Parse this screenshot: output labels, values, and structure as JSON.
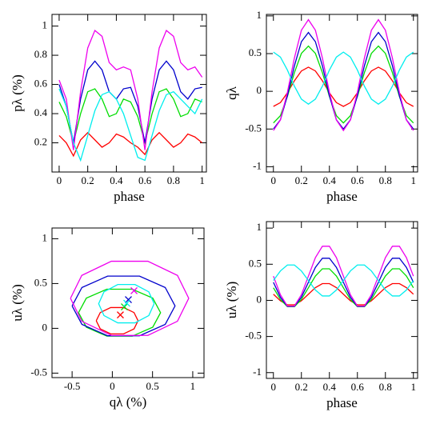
{
  "chart_data": [
    {
      "type": "line",
      "xlabel": "phase",
      "ylabel": "pλ (%)",
      "xlim": [
        -0.05,
        1.03
      ],
      "ylim": [
        0,
        1.08
      ],
      "xticks": [
        0,
        0.2,
        0.4,
        0.6,
        0.8,
        1
      ],
      "yticks": [
        0.2,
        0.4,
        0.6,
        0.8,
        1
      ],
      "x": [
        0,
        0.05,
        0.1,
        0.15,
        0.2,
        0.25,
        0.3,
        0.35,
        0.4,
        0.45,
        0.5,
        0.55,
        0.6,
        0.65,
        0.7,
        0.75,
        0.8,
        0.85,
        0.9,
        0.95,
        1
      ],
      "series": [
        {
          "color": "#ff0000",
          "values": [
            0.25,
            0.2,
            0.11,
            0.22,
            0.27,
            0.22,
            0.17,
            0.2,
            0.26,
            0.24,
            0.2,
            0.17,
            0.12,
            0.22,
            0.27,
            0.22,
            0.17,
            0.2,
            0.26,
            0.24,
            0.2
          ]
        },
        {
          "color": "#00dd00",
          "values": [
            0.48,
            0.38,
            0.2,
            0.4,
            0.55,
            0.57,
            0.5,
            0.38,
            0.4,
            0.5,
            0.48,
            0.38,
            0.2,
            0.4,
            0.55,
            0.57,
            0.5,
            0.38,
            0.4,
            0.5,
            0.48
          ]
        },
        {
          "color": "#0000cc",
          "values": [
            0.6,
            0.45,
            0.2,
            0.5,
            0.7,
            0.76,
            0.7,
            0.55,
            0.5,
            0.57,
            0.58,
            0.45,
            0.2,
            0.5,
            0.7,
            0.76,
            0.7,
            0.55,
            0.5,
            0.57,
            0.58
          ]
        },
        {
          "color": "#ee00ee",
          "values": [
            0.63,
            0.5,
            0.15,
            0.55,
            0.85,
            0.97,
            0.93,
            0.75,
            0.7,
            0.72,
            0.7,
            0.5,
            0.15,
            0.55,
            0.85,
            0.97,
            0.93,
            0.75,
            0.7,
            0.72,
            0.65
          ]
        },
        {
          "color": "#00eeee",
          "values": [
            0.57,
            0.45,
            0.2,
            0.08,
            0.25,
            0.42,
            0.53,
            0.55,
            0.5,
            0.4,
            0.25,
            0.1,
            0.08,
            0.25,
            0.42,
            0.53,
            0.55,
            0.5,
            0.45,
            0.4,
            0.5
          ]
        }
      ]
    },
    {
      "type": "line",
      "xlabel": "phase",
      "ylabel": "qλ",
      "xlim": [
        -0.05,
        1.03
      ],
      "ylim": [
        -1.07,
        1.02
      ],
      "xticks": [
        0,
        0.2,
        0.4,
        0.6,
        0.8,
        1
      ],
      "yticks": [
        -1,
        -0.5,
        0,
        0.5,
        1
      ],
      "x": [
        0,
        0.05,
        0.1,
        0.15,
        0.2,
        0.25,
        0.3,
        0.35,
        0.4,
        0.45,
        0.5,
        0.55,
        0.6,
        0.65,
        0.7,
        0.75,
        0.8,
        0.85,
        0.9,
        0.95,
        1
      ],
      "series": [
        {
          "color": "#ff0000",
          "values": [
            -0.2,
            -0.15,
            -0.02,
            0.14,
            0.27,
            0.32,
            0.27,
            0.14,
            -0.02,
            -0.15,
            -0.2,
            -0.15,
            -0.02,
            0.14,
            0.27,
            0.32,
            0.27,
            0.14,
            -0.02,
            -0.15,
            -0.2
          ]
        },
        {
          "color": "#00dd00",
          "values": [
            -0.42,
            -0.323,
            -0.068,
            0.248,
            0.503,
            0.6,
            0.503,
            0.248,
            -0.068,
            -0.323,
            -0.42,
            -0.323,
            -0.068,
            0.248,
            0.503,
            0.6,
            0.503,
            0.248,
            -0.068,
            -0.323,
            -0.42
          ]
        },
        {
          "color": "#0000cc",
          "values": [
            -0.5,
            -0.378,
            -0.058,
            0.338,
            0.658,
            0.78,
            0.658,
            0.338,
            -0.058,
            -0.378,
            -0.5,
            -0.378,
            -0.058,
            0.338,
            0.658,
            0.78,
            0.658,
            0.338,
            -0.058,
            -0.378,
            -0.5
          ]
        },
        {
          "color": "#ee00ee",
          "values": [
            -0.52,
            -0.38,
            -0.012,
            0.442,
            0.81,
            0.95,
            0.81,
            0.442,
            -0.012,
            -0.38,
            -0.52,
            -0.38,
            -0.012,
            0.442,
            0.81,
            0.95,
            0.81,
            0.442,
            -0.012,
            -0.38,
            -0.52
          ]
        },
        {
          "color": "#00eeee",
          "values": [
            0.52,
            0.454,
            0.282,
            0.068,
            -0.104,
            -0.17,
            -0.104,
            0.068,
            0.282,
            0.454,
            0.52,
            0.454,
            0.282,
            0.068,
            -0.104,
            -0.17,
            -0.104,
            0.068,
            0.282,
            0.454,
            0.52
          ]
        }
      ]
    },
    {
      "type": "loci",
      "xlabel": "qλ (%)",
      "ylabel": "uλ (%)",
      "xlim": [
        -0.75,
        1.14
      ],
      "ylim": [
        -0.55,
        1.12
      ],
      "xticks": [
        -0.5,
        0,
        0.5,
        1
      ],
      "yticks": [
        -0.5,
        0,
        0.5,
        1
      ],
      "series": [
        {
          "color": "#ff0000",
          "x": [
            -0.2,
            -0.15,
            -0.02,
            0.14,
            0.27,
            0.32,
            0.27,
            0.14,
            -0.02,
            -0.15,
            -0.2
          ],
          "values": [
            0.085,
            -0.006,
            -0.062,
            -0.062,
            -0.006,
            0.085,
            0.176,
            0.232,
            0.232,
            0.176,
            0.085
          ],
          "marker_x": 0.1,
          "marker_y": 0.15
        },
        {
          "color": "#00dd00",
          "x": [
            -0.42,
            -0.323,
            -0.068,
            0.248,
            0.503,
            0.6,
            0.503,
            0.248,
            -0.068,
            -0.323,
            -0.42
          ],
          "values": [
            0.175,
            0.013,
            -0.087,
            -0.087,
            0.013,
            0.175,
            0.337,
            0.437,
            0.437,
            0.337,
            0.175
          ],
          "marker_x": 0.15,
          "marker_y": 0.24
        },
        {
          "color": "#0000cc",
          "x": [
            -0.5,
            -0.378,
            -0.058,
            0.338,
            0.658,
            0.78,
            0.658,
            0.338,
            -0.058,
            -0.378,
            -0.5
          ],
          "values": [
            0.25,
            0.044,
            -0.083,
            -0.083,
            0.044,
            0.25,
            0.456,
            0.583,
            0.583,
            0.456,
            0.25
          ],
          "marker_x": 0.2,
          "marker_y": 0.32
        },
        {
          "color": "#ee00ee",
          "x": [
            -0.52,
            -0.38,
            -0.012,
            0.442,
            0.81,
            0.95,
            0.81,
            0.442,
            -0.012,
            -0.38,
            -0.52
          ],
          "values": [
            0.335,
            0.079,
            -0.079,
            -0.079,
            0.079,
            0.335,
            0.591,
            0.749,
            0.749,
            0.591,
            0.335
          ],
          "marker_x": 0.27,
          "marker_y": 0.42
        },
        {
          "color": "#00eeee",
          "x": [
            0.52,
            0.454,
            0.282,
            0.068,
            -0.104,
            -0.17,
            -0.104,
            0.068,
            0.282,
            0.454,
            0.52
          ],
          "values": [
            0.275,
            0.407,
            0.489,
            0.489,
            0.407,
            0.275,
            0.143,
            0.061,
            0.061,
            0.143,
            0.275
          ],
          "marker_x": 0.18,
          "marker_y": 0.28
        }
      ]
    },
    {
      "type": "line",
      "xlabel": "phase",
      "ylabel": "uλ (%)",
      "xlim": [
        -0.05,
        1.03
      ],
      "ylim": [
        -1.08,
        1.09
      ],
      "xticks": [
        0,
        0.2,
        0.4,
        0.6,
        0.8,
        1
      ],
      "yticks": [
        -1,
        -0.5,
        0,
        0.5,
        1
      ],
      "x": [
        0,
        0.05,
        0.1,
        0.15,
        0.2,
        0.25,
        0.3,
        0.35,
        0.4,
        0.45,
        0.5,
        0.55,
        0.6,
        0.65,
        0.7,
        0.75,
        0.8,
        0.85,
        0.9,
        0.95,
        1
      ],
      "series": [
        {
          "color": "#ff0000",
          "values": [
            0.085,
            -0.006,
            -0.062,
            -0.062,
            -0.006,
            0.085,
            0.176,
            0.232,
            0.232,
            0.176,
            0.085,
            -0.006,
            -0.062,
            -0.062,
            -0.006,
            0.085,
            0.176,
            0.232,
            0.232,
            0.176,
            0.085
          ]
        },
        {
          "color": "#00dd00",
          "values": [
            0.175,
            0.013,
            -0.087,
            -0.087,
            0.013,
            0.175,
            0.337,
            0.437,
            0.437,
            0.337,
            0.175,
            0.013,
            -0.087,
            -0.087,
            0.013,
            0.175,
            0.337,
            0.437,
            0.437,
            0.337,
            0.175
          ]
        },
        {
          "color": "#0000cc",
          "values": [
            0.25,
            0.044,
            -0.083,
            -0.083,
            0.044,
            0.25,
            0.456,
            0.583,
            0.583,
            0.456,
            0.25,
            0.044,
            -0.083,
            -0.083,
            0.044,
            0.25,
            0.456,
            0.583,
            0.583,
            0.456,
            0.25
          ]
        },
        {
          "color": "#ee00ee",
          "values": [
            0.335,
            0.079,
            -0.079,
            -0.079,
            0.079,
            0.335,
            0.591,
            0.749,
            0.749,
            0.591,
            0.335,
            0.079,
            -0.079,
            -0.079,
            0.079,
            0.335,
            0.591,
            0.749,
            0.749,
            0.591,
            0.335
          ]
        },
        {
          "color": "#00eeee",
          "values": [
            0.275,
            0.407,
            0.489,
            0.489,
            0.407,
            0.275,
            0.143,
            0.061,
            0.061,
            0.143,
            0.275,
            0.407,
            0.489,
            0.489,
            0.407,
            0.275,
            0.143,
            0.061,
            0.061,
            0.143,
            0.275
          ]
        }
      ]
    }
  ]
}
